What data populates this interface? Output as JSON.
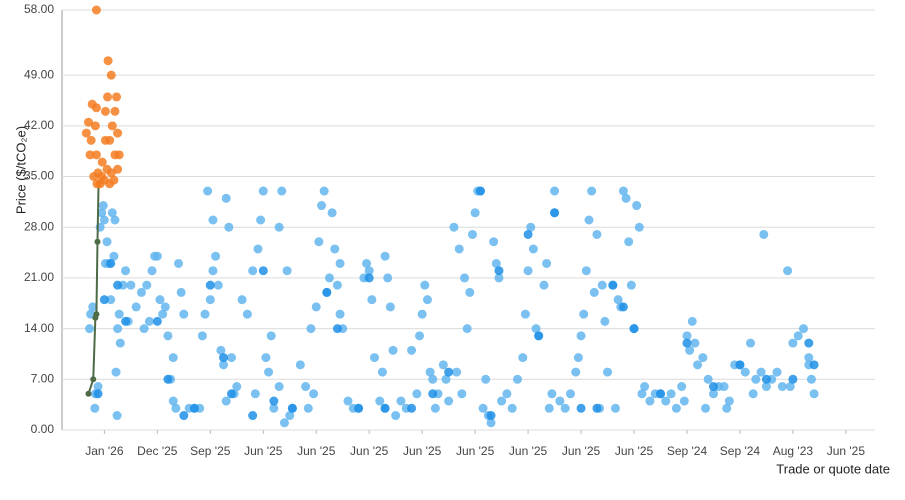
{
  "chart_data": {
    "type": "scatter",
    "y_label": "Price ($/tCO₂e)",
    "x_label": "Trade or quote date",
    "xlim": [
      0.2,
      15.55
    ],
    "xticks": [
      {
        "value": 1,
        "label": "Jan '26"
      },
      {
        "value": 2,
        "label": "Dec '25"
      },
      {
        "value": 3,
        "label": "Sep '25"
      },
      {
        "value": 4,
        "label": "Jun '25"
      },
      {
        "value": 5,
        "label": "Jun '25"
      },
      {
        "value": 6,
        "label": "Jun '25"
      },
      {
        "value": 7,
        "label": "Jun '25"
      },
      {
        "value": 8,
        "label": "Jun '25"
      },
      {
        "value": 9,
        "label": "Jun '25"
      },
      {
        "value": 10,
        "label": "Jun '25"
      },
      {
        "value": 11,
        "label": "Jun '25"
      },
      {
        "value": 12,
        "label": "Sep '24"
      },
      {
        "value": 13,
        "label": "Sep '24"
      },
      {
        "value": 14,
        "label": "Aug '23"
      },
      {
        "value": 15,
        "label": "Jun '25"
      }
    ],
    "ylim": [
      0,
      58
    ],
    "yticks": [
      {
        "value": 0,
        "label": "0.00"
      },
      {
        "value": 7,
        "label": "7.00"
      },
      {
        "value": 14,
        "label": "14.00"
      },
      {
        "value": 21,
        "label": "21.00"
      },
      {
        "value": 28,
        "label": "28.00"
      },
      {
        "value": 35,
        "label": "35.00"
      },
      {
        "value": 42,
        "label": "42.00"
      },
      {
        "value": 49,
        "label": "49.00"
      },
      {
        "value": 58,
        "label": "58.00"
      }
    ],
    "grid": true,
    "series": [
      {
        "color": "#63b5ef",
        "mode": "markers",
        "x": [
          0.72,
          0.74,
          0.78,
          0.82,
          0.83,
          0.88,
          0.92,
          0.95,
          0.98,
          1.0,
          1.02,
          1.05,
          1.08,
          1.12,
          1.18,
          1.15,
          1.2,
          1.25,
          1.28,
          1.3,
          1.22,
          1.24,
          1.35,
          1.4,
          1.45,
          1.5,
          1.6,
          1.7,
          1.8,
          1.9,
          1.95,
          2.0,
          2.1,
          2.2,
          2.25,
          2.3,
          2.35,
          2.4,
          1.75,
          1.85,
          2.05,
          2.15,
          2.3,
          2.45,
          2.5,
          2.6,
          2.7,
          2.8,
          2.9,
          3.0,
          3.05,
          3.1,
          2.95,
          3.05,
          3.2,
          3.25,
          3.3,
          3.35,
          3.4,
          3.45,
          3.5,
          3.15,
          3.3,
          2.85,
          3.6,
          3.7,
          3.8,
          3.9,
          3.95,
          4.0,
          4.05,
          4.1,
          4.15,
          3.85,
          4.2,
          4.3,
          4.35,
          4.45,
          4.5,
          4.3,
          4.4,
          4.55,
          4.7,
          4.8,
          4.9,
          5.0,
          5.05,
          5.1,
          5.15,
          5.2,
          5.3,
          5.35,
          5.4,
          5.45,
          5.5,
          4.85,
          5.25,
          5.45,
          4.95,
          5.6,
          5.7,
          5.8,
          5.9,
          6.0,
          6.05,
          6.1,
          6.2,
          6.25,
          6.3,
          6.35,
          6.4,
          6.45,
          5.95,
          6.3,
          6.5,
          6.6,
          6.7,
          6.8,
          6.9,
          7.0,
          7.05,
          7.1,
          7.15,
          7.2,
          7.25,
          7.3,
          7.4,
          7.45,
          6.95,
          7.5,
          7.6,
          7.7,
          7.8,
          7.9,
          7.95,
          8.0,
          8.05,
          8.1,
          8.15,
          8.2,
          8.25,
          8.3,
          8.35,
          8.4,
          8.45,
          7.75,
          7.85,
          8.5,
          7.65,
          8.6,
          8.7,
          8.8,
          8.9,
          8.95,
          9.0,
          9.05,
          9.1,
          9.15,
          9.2,
          9.3,
          9.35,
          9.4,
          9.45,
          9.5,
          9.5,
          9.6,
          9.7,
          9.8,
          9.9,
          10.0,
          10.05,
          10.1,
          10.15,
          10.2,
          10.25,
          10.3,
          10.4,
          10.45,
          9.95,
          10.35,
          10.5,
          10.6,
          10.7,
          10.75,
          10.8,
          10.85,
          10.9,
          10.95,
          11.0,
          11.05,
          11.1,
          10.65,
          11.15,
          11.2,
          11.3,
          11.4,
          11.5,
          11.6,
          11.7,
          11.8,
          11.9,
          12.0,
          12.05,
          12.1,
          12.15,
          12.2,
          12.3,
          12.4,
          12.5,
          11.95,
          12.35,
          12.6,
          12.7,
          12.8,
          12.9,
          13.0,
          13.1,
          13.2,
          13.3,
          13.4,
          13.45,
          13.5,
          12.75,
          13.25,
          13.6,
          13.7,
          13.8,
          13.9,
          14.0,
          14.1,
          14.2,
          14.3,
          14.35,
          14.4,
          14.3,
          13.95
        ],
        "values": [
          14,
          16,
          17,
          3,
          5,
          6,
          28,
          30,
          31,
          29,
          23,
          26,
          23,
          18,
          24,
          30,
          29,
          14,
          16,
          12,
          8,
          2,
          20,
          22,
          15,
          20,
          17,
          19,
          20,
          22,
          24,
          24,
          16,
          13,
          7,
          4,
          3,
          23,
          14,
          15,
          18,
          17,
          10,
          19,
          16,
          3,
          3,
          3,
          16,
          18,
          22,
          24,
          33,
          29,
          11,
          9,
          32,
          28,
          10,
          5,
          6,
          20,
          4,
          13,
          18,
          16,
          22,
          25,
          29,
          33,
          10,
          8,
          13,
          5,
          3,
          28,
          33,
          22,
          2,
          6,
          1,
          3,
          9,
          6,
          14,
          17,
          26,
          31,
          33,
          19,
          30,
          25,
          20,
          16,
          14,
          3,
          21,
          23,
          5,
          4,
          3,
          3,
          21,
          22,
          18,
          10,
          4,
          8,
          24,
          21,
          17,
          11,
          23,
          3,
          2,
          4,
          3,
          11,
          5,
          16,
          20,
          18,
          8,
          7,
          3,
          5,
          9,
          7,
          13,
          4,
          28,
          25,
          21,
          19,
          27,
          30,
          33,
          33,
          3,
          7,
          2,
          1,
          26,
          23,
          21,
          5,
          14,
          4,
          8,
          5,
          3,
          7,
          10,
          16,
          22,
          28,
          25,
          14,
          13,
          20,
          23,
          3,
          5,
          33,
          30,
          4,
          3,
          5,
          8,
          13,
          16,
          22,
          29,
          33,
          19,
          27,
          20,
          15,
          10,
          3,
          8,
          20,
          18,
          17,
          33,
          32,
          26,
          20,
          14,
          31,
          28,
          3,
          5,
          6,
          4,
          5,
          5,
          4,
          5,
          3,
          6,
          13,
          11,
          15,
          12,
          9,
          10,
          7,
          5,
          4,
          3,
          6,
          6,
          4,
          9,
          9,
          8,
          12,
          7,
          8,
          27,
          6,
          3,
          5,
          7,
          8,
          6,
          22,
          12,
          13,
          14,
          10,
          7,
          5,
          9,
          6
        ]
      },
      {
        "color": "#1f8fe6",
        "mode": "markers",
        "x": [
          0.88,
          1.0,
          1.12,
          1.25,
          1.4,
          2.0,
          2.2,
          2.5,
          2.7,
          3.0,
          3.25,
          3.4,
          3.8,
          4.0,
          4.2,
          4.55,
          5.2,
          5.4,
          5.8,
          6.0,
          6.3,
          6.8,
          7.2,
          7.5,
          8.1,
          8.3,
          8.45,
          9.0,
          9.2,
          9.5,
          10.0,
          10.3,
          10.6,
          10.8,
          11.0,
          11.5,
          12.0,
          12.5,
          13.0,
          13.5,
          14.0,
          14.3,
          14.4
        ],
        "values": [
          5,
          18,
          23,
          20,
          15,
          15,
          7,
          2,
          3,
          20,
          10,
          5,
          2,
          22,
          4,
          3,
          19,
          14,
          3,
          21,
          3,
          3,
          5,
          8,
          33,
          2,
          22,
          27,
          13,
          30,
          3,
          3,
          20,
          17,
          14,
          5,
          12,
          6,
          9,
          7,
          7,
          12,
          9
        ]
      },
      {
        "color": "#4d6b46",
        "mode": "line",
        "x": [
          0.7,
          0.79,
          0.83,
          0.85,
          0.87,
          0.89
        ],
        "values": [
          5,
          7,
          15.5,
          16,
          26,
          34
        ]
      },
      {
        "color": "#f47c22",
        "mode": "markers",
        "x": [
          0.85,
          1.07,
          1.13,
          1.06,
          1.23,
          0.77,
          0.85,
          1.02,
          1.2,
          0.7,
          0.83,
          1.15,
          0.66,
          0.75,
          1.25,
          1.02,
          1.1,
          0.73,
          0.85,
          1.2,
          1.28,
          0.96,
          1.05,
          1.25,
          0.88,
          1.13,
          0.95,
          0.8,
          1.0,
          1.18,
          0.92,
          0.86,
          1.1
        ],
        "values": [
          58,
          51,
          49,
          46,
          46,
          45,
          44.5,
          44,
          44,
          42.5,
          42,
          42,
          41,
          40,
          41,
          40,
          40,
          38,
          38,
          38,
          38,
          37,
          36,
          36,
          35.5,
          35.5,
          35,
          35,
          34.5,
          34.5,
          34,
          34,
          34
        ]
      }
    ]
  }
}
